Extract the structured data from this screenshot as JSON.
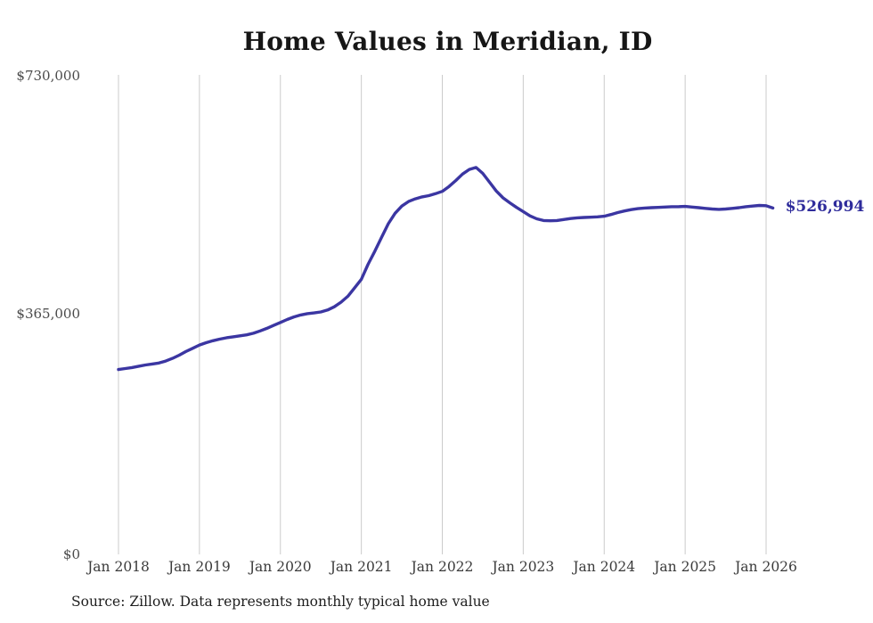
{
  "chart": {
    "title": "Home Values in Meridian, ID",
    "end_label": "$526,994",
    "source": "Source: Zillow. Data represents monthly typical home value"
  },
  "chart_data": {
    "type": "line",
    "title": "Home Values in Meridian, ID",
    "series_name": "Monthly typical home value",
    "frequency": "monthly",
    "x_start": "2018-01",
    "x_end": "2026-02",
    "ylim": [
      0,
      730000
    ],
    "grid": "vertical-only",
    "legend": "none",
    "line_color": "#3b36a2",
    "end_label_color": "#2e2b9b",
    "gridline_color": "#cbcbcb",
    "last_value": 526994,
    "end_label": "$526,994",
    "source": "Source: Zillow. Data represents monthly typical home value",
    "x_ticks": [
      "Jan 2018",
      "Jan 2019",
      "Jan 2020",
      "Jan 2021",
      "Jan 2022",
      "Jan 2023",
      "Jan 2024",
      "Jan 2025",
      "Jan 2026"
    ],
    "y_ticks": [
      {
        "label": "$0",
        "value": 0
      },
      {
        "label": "$365,000",
        "value": 365000
      },
      {
        "label": "$730,000",
        "value": 730000
      }
    ],
    "values": [
      280000,
      281500,
      283000,
      285000,
      287000,
      288500,
      290000,
      293000,
      297000,
      302000,
      307500,
      312500,
      317500,
      321000,
      324000,
      326500,
      328500,
      330000,
      331500,
      333000,
      335500,
      339000,
      343000,
      347500,
      352000,
      356500,
      360500,
      363500,
      365500,
      366500,
      368000,
      371000,
      376000,
      383000,
      392000,
      405000,
      418000,
      441000,
      461000,
      482000,
      503000,
      519000,
      530000,
      537000,
      541000,
      544000,
      546000,
      549000,
      552500,
      560000,
      569000,
      579000,
      586000,
      589000,
      580000,
      566500,
      553000,
      542500,
      535000,
      528000,
      521500,
      515000,
      510500,
      508000,
      507500,
      508000,
      509500,
      511000,
      512000,
      512500,
      513000,
      513500,
      514500,
      517000,
      520000,
      522500,
      524500,
      526000,
      527000,
      527500,
      528000,
      528500,
      529000,
      529000,
      529500,
      528500,
      527500,
      526500,
      525500,
      525000,
      525500,
      526500,
      527500,
      529000,
      530000,
      531000,
      530500,
      526994
    ]
  }
}
